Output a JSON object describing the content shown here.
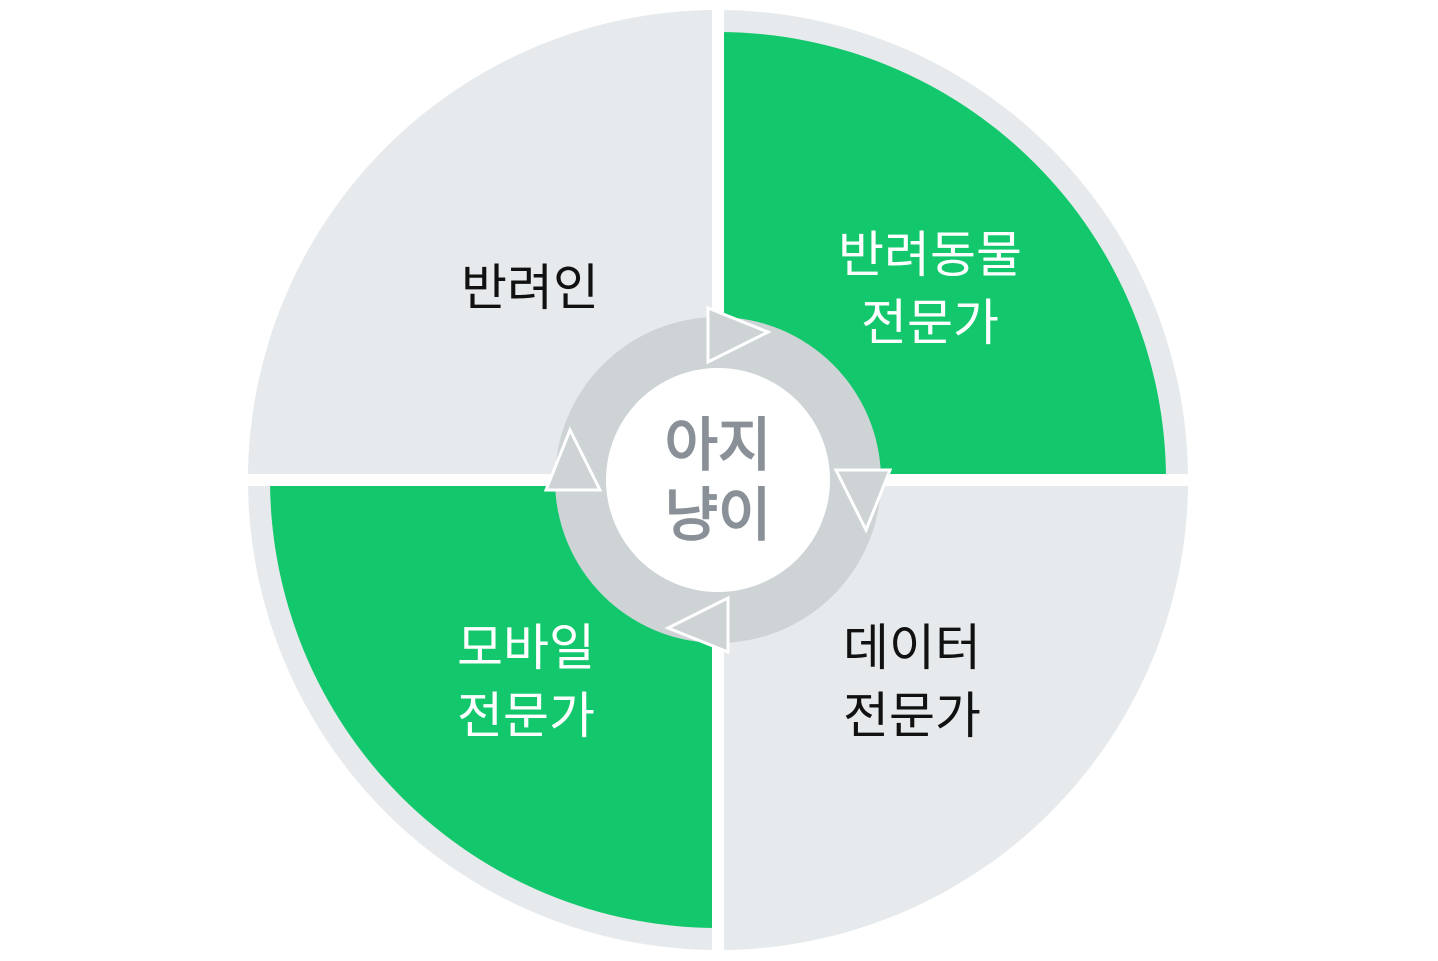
{
  "center": {
    "line1": "아지",
    "line2": "냥이"
  },
  "quadrants": {
    "top_left": {
      "line1": "반려인",
      "line2": ""
    },
    "top_right": {
      "line1": "반려동물",
      "line2": "전문가"
    },
    "bottom_right": {
      "line1": "데이터",
      "line2": "전문가"
    },
    "bottom_left": {
      "line1": "모바일",
      "line2": "전문가"
    }
  },
  "colors": {
    "green": "#13c86c",
    "gray": "#e7eaec",
    "ring": "#ced3d6",
    "text_dark": "#111111",
    "text_light": "#ffffff",
    "center_text": "#8a9097"
  }
}
